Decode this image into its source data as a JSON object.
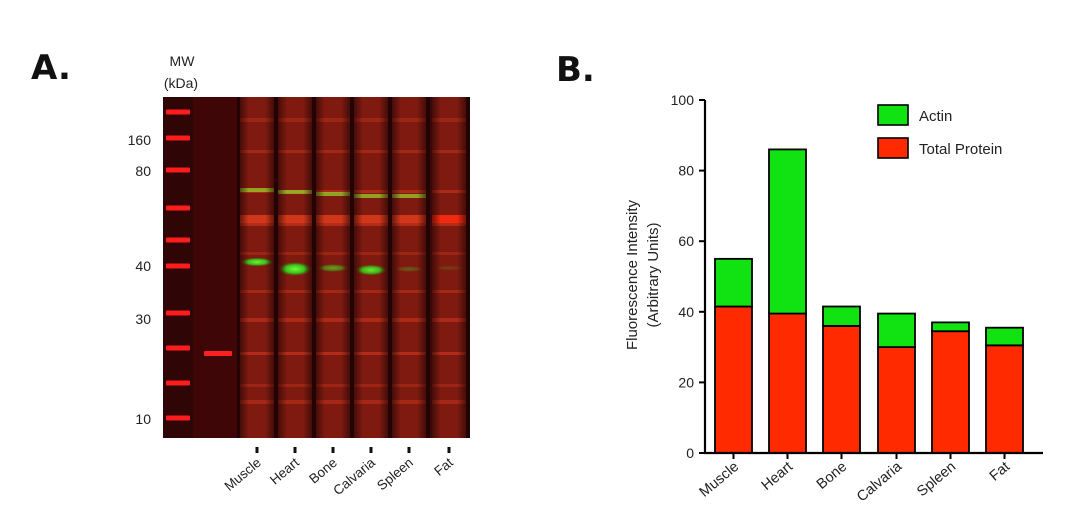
{
  "panel_a": {
    "letter": "A.",
    "mw_header": [
      "MW",
      "(kDa)"
    ],
    "mw_markers": [
      "160",
      "80",
      "40",
      "30",
      "10"
    ],
    "lanes": [
      "Muscle",
      "Heart",
      "Bone",
      "Calvaria",
      "Spleen",
      "Fat"
    ]
  },
  "panel_b": {
    "letter": "B."
  },
  "chart_data": {
    "type": "bar",
    "stacked": true,
    "categories": [
      "Muscle",
      "Heart",
      "Bone",
      "Calvaria",
      "Spleen",
      "Fat"
    ],
    "series": [
      {
        "name": "Total Protein",
        "color": "#ff2a00",
        "values": [
          41.5,
          39.5,
          36,
          30,
          34.5,
          30.5
        ]
      },
      {
        "name": "Actin",
        "color": "#11e211",
        "values": [
          13.5,
          46.5,
          5.5,
          9.5,
          2.5,
          5
        ]
      }
    ],
    "legend_order": [
      "Actin",
      "Total Protein"
    ],
    "legend_position": "top-right",
    "ylabel": [
      "Fluorescence Intensity",
      "(Arbitrary Units)"
    ],
    "xlabel": "",
    "yticks": [
      "0",
      "20",
      "40",
      "60",
      "80",
      "100"
    ],
    "ylim": [
      0,
      100
    ],
    "grid": false
  }
}
